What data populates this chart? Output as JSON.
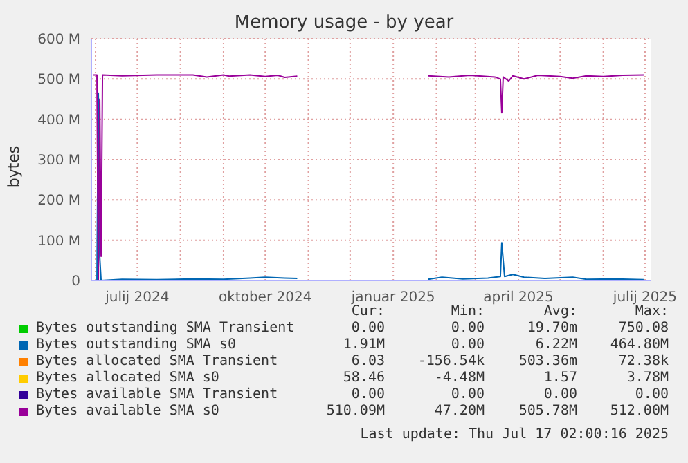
{
  "chart_data": {
    "type": "line",
    "title": "Memory usage - by year",
    "ylabel": "bytes",
    "xlim": [
      "2024-05-29",
      "2025-07-05"
    ],
    "xticks": [
      {
        "value": "2024-06-01",
        "label": null
      },
      {
        "value": "2024-07-01",
        "label": "julij 2024"
      },
      {
        "value": "2024-08-01",
        "label": null
      },
      {
        "value": "2024-09-01",
        "label": null
      },
      {
        "value": "2024-10-01",
        "label": "oktober 2024"
      },
      {
        "value": "2024-11-01",
        "label": null
      },
      {
        "value": "2024-12-01",
        "label": null
      },
      {
        "value": "2025-01-01",
        "label": "januar 2025"
      },
      {
        "value": "2025-02-01",
        "label": null
      },
      {
        "value": "2025-03-01",
        "label": null
      },
      {
        "value": "2025-04-01",
        "label": "april 2025"
      },
      {
        "value": "2025-05-01",
        "label": null
      },
      {
        "value": "2025-06-01",
        "label": null
      },
      {
        "value": "2025-07-01",
        "label": "julij 2025"
      }
    ],
    "ylim": [
      0,
      600
    ],
    "yticks": [
      0,
      {
        "value": 100,
        "label": "100 M"
      },
      {
        "value": 200,
        "label": "200 M"
      },
      {
        "value": 300,
        "label": "300 M"
      },
      {
        "value": 400,
        "label": "400 M"
      },
      {
        "value": 500,
        "label": "500 M"
      },
      {
        "value": 600,
        "label": "600 M"
      }
    ],
    "grid": true,
    "legend": "bottom",
    "line_style": "solid",
    "series": [
      {
        "name": "Bytes outstanding SMA Transient",
        "color": "#00cc00"
      },
      {
        "name": "Bytes outstanding SMA s0",
        "color": "#0066b3",
        "x": [
          "2024-05-30",
          "2024-06-02",
          "2024-06-03",
          "2024-06-04",
          "2024-06-05",
          "2024-06-20",
          "2024-07-15",
          "2024-08-10",
          "2024-09-01",
          "2024-09-20",
          "2024-10-01",
          "2024-10-15",
          "2024-10-24",
          "2024-12-01",
          "2025-01-26",
          "2025-02-05",
          "2025-02-20",
          "2025-03-10",
          "2025-03-19",
          "2025-03-20",
          "2025-03-22",
          "2025-03-28",
          "2025-04-05",
          "2025-04-20",
          "2025-05-10",
          "2025-05-20",
          "2025-06-10",
          "2025-06-30"
        ],
        "values": [
          0,
          0,
          465,
          60,
          0,
          3,
          2,
          4,
          3,
          6,
          8,
          6,
          5,
          null,
          3,
          8,
          4,
          6,
          10,
          94,
          10,
          15,
          8,
          5,
          8,
          3,
          4,
          2
        ]
      },
      {
        "name": "Bytes allocated SMA Transient",
        "color": "#ff8000"
      },
      {
        "name": "Bytes allocated SMA s0",
        "color": "#ffcc00"
      },
      {
        "name": "Bytes available SMA Transient",
        "color": "#330099"
      },
      {
        "name": "Bytes available SMA s0",
        "color": "#990099",
        "x": [
          "2024-05-30",
          "2024-06-02",
          "2024-06-03",
          "2024-06-04",
          "2024-06-05",
          "2024-06-06",
          "2024-06-20",
          "2024-07-15",
          "2024-08-10",
          "2024-08-20",
          "2024-09-01",
          "2024-09-05",
          "2024-09-20",
          "2024-10-01",
          "2024-10-10",
          "2024-10-15",
          "2024-10-24",
          "2024-12-01",
          "2025-01-26",
          "2025-02-10",
          "2025-02-25",
          "2025-03-15",
          "2025-03-19",
          "2025-03-20",
          "2025-03-21",
          "2025-03-25",
          "2025-03-28",
          "2025-04-05",
          "2025-04-15",
          "2025-05-01",
          "2025-05-10",
          "2025-05-20",
          "2025-06-01",
          "2025-06-15",
          "2025-06-30"
        ],
        "values": [
          510,
          510,
          0,
          450,
          60,
          510,
          508,
          510,
          510,
          505,
          510,
          507,
          510,
          506,
          509,
          504,
          507,
          null,
          508,
          505,
          509,
          505,
          500,
          416,
          505,
          495,
          508,
          500,
          509,
          506,
          502,
          508,
          506,
          509,
          510
        ]
      }
    ],
    "annotations": [
      "Cur:",
      "Min:",
      "Avg:",
      "Max:",
      "0.00",
      "0.00",
      "19.70m",
      "750.08",
      "1.91M",
      "0.00",
      "6.22M",
      "464.80M",
      "6.03",
      "-156.54k",
      "503.36m",
      "72.38k",
      "58.46",
      "-4.48M",
      "1.57",
      "3.78M",
      "0.00",
      "0.00",
      "0.00",
      "0.00",
      "510.09M",
      "47.20M",
      "505.78M",
      "512.00M",
      "Last update: Thu Jul 17 02:00:16 2025"
    ]
  }
}
